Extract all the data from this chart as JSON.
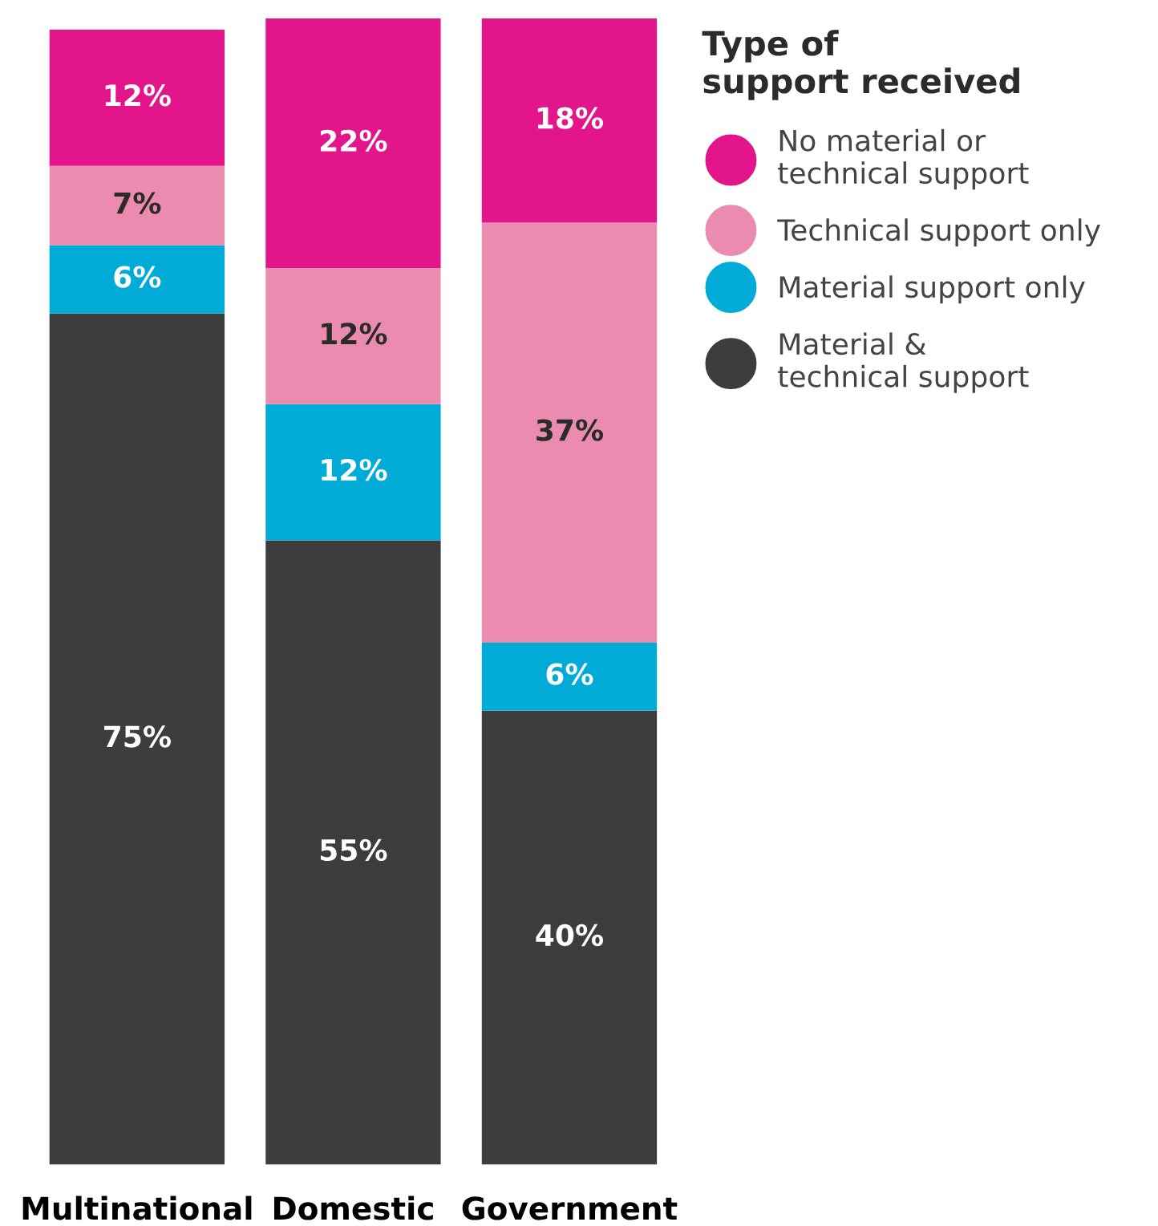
{
  "chart_data": {
    "type": "bar",
    "stacked": true,
    "categories": [
      "Multinational",
      "Domestic",
      "Government"
    ],
    "legend_title": "Type of\nsupport received",
    "legend": "top right",
    "ylim": [
      0,
      101
    ],
    "tick_labels": "x",
    "grid": false,
    "series": [
      {
        "name": "Material &\ntechnical support",
        "color": "#3d3d3d",
        "values": [
          75,
          55,
          40
        ],
        "value_labels": [
          "75%",
          "55%",
          "40%"
        ]
      },
      {
        "name": "Material support only",
        "color": "#00acd7",
        "values": [
          6,
          12,
          6
        ],
        "value_labels": [
          "6%",
          "12%",
          "6%"
        ]
      },
      {
        "name": "Technical support only",
        "color": "#ec8bb0",
        "values": [
          7,
          12,
          37
        ],
        "value_labels": [
          "7%",
          "12%",
          "37%"
        ]
      },
      {
        "name": "No material or\ntechnical support",
        "color": "#e2168a",
        "values": [
          12,
          22,
          18
        ],
        "value_labels": [
          "12%",
          "22%",
          "18%"
        ]
      }
    ]
  }
}
